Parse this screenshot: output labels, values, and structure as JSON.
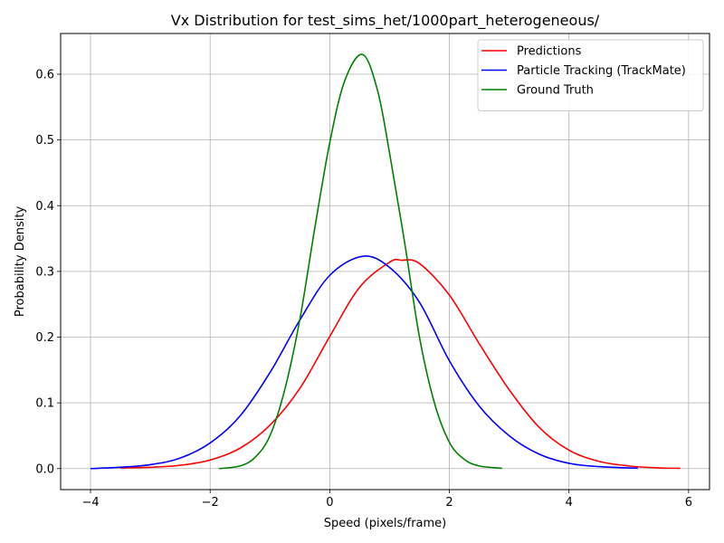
{
  "chart_data": {
    "type": "line",
    "title": "Vx Distribution for test_sims_het/1000part_heterogeneous/",
    "xlabel": "Speed (pixels/frame)",
    "ylabel": "Probability Density",
    "xlim": [
      -4.5,
      6.35
    ],
    "ylim": [
      -0.032,
      0.662
    ],
    "xticks": [
      -4,
      -2,
      0,
      2,
      4,
      6
    ],
    "xtick_labels": [
      "−4",
      "−2",
      "0",
      "2",
      "4",
      "6"
    ],
    "yticks": [
      0.0,
      0.1,
      0.2,
      0.3,
      0.4,
      0.5,
      0.6
    ],
    "ytick_labels": [
      "0.0",
      "0.1",
      "0.2",
      "0.3",
      "0.4",
      "0.5",
      "0.6"
    ],
    "grid": true,
    "legend_position": "top-right",
    "series": [
      {
        "name": "Predictions",
        "color": "#ff0000",
        "x": [
          -3.5,
          -3.0,
          -2.5,
          -2.0,
          -1.5,
          -1.0,
          -0.5,
          0.0,
          0.5,
          1.0,
          1.2,
          1.5,
          2.0,
          2.5,
          3.0,
          3.5,
          4.0,
          4.5,
          5.0,
          5.5,
          5.86
        ],
        "y": [
          0.001,
          0.002,
          0.005,
          0.013,
          0.031,
          0.066,
          0.122,
          0.201,
          0.276,
          0.314,
          0.317,
          0.312,
          0.264,
          0.19,
          0.12,
          0.063,
          0.028,
          0.011,
          0.004,
          0.001,
          0.0005
        ]
      },
      {
        "name": "Particle Tracking (TrackMate)",
        "color": "#0000ff",
        "x": [
          -4.0,
          -3.5,
          -3.0,
          -2.5,
          -2.0,
          -1.5,
          -1.0,
          -0.5,
          0.0,
          0.55,
          1.0,
          1.5,
          2.0,
          2.5,
          3.0,
          3.5,
          4.0,
          4.5,
          5.15
        ],
        "y": [
          0.0,
          0.002,
          0.006,
          0.016,
          0.039,
          0.08,
          0.146,
          0.226,
          0.294,
          0.323,
          0.306,
          0.253,
          0.164,
          0.095,
          0.05,
          0.022,
          0.008,
          0.003,
          0.0005
        ]
      },
      {
        "name": "Ground Truth",
        "color": "#008000",
        "x": [
          -1.85,
          -1.5,
          -1.25,
          -1.0,
          -0.75,
          -0.5,
          -0.25,
          0.0,
          0.25,
          0.55,
          0.8,
          1.0,
          1.25,
          1.5,
          1.75,
          2.0,
          2.25,
          2.5,
          2.88
        ],
        "y": [
          0.0,
          0.004,
          0.017,
          0.05,
          0.121,
          0.227,
          0.366,
          0.496,
          0.59,
          0.63,
          0.575,
          0.48,
          0.345,
          0.2,
          0.1,
          0.04,
          0.014,
          0.004,
          0.0005
        ]
      }
    ]
  }
}
